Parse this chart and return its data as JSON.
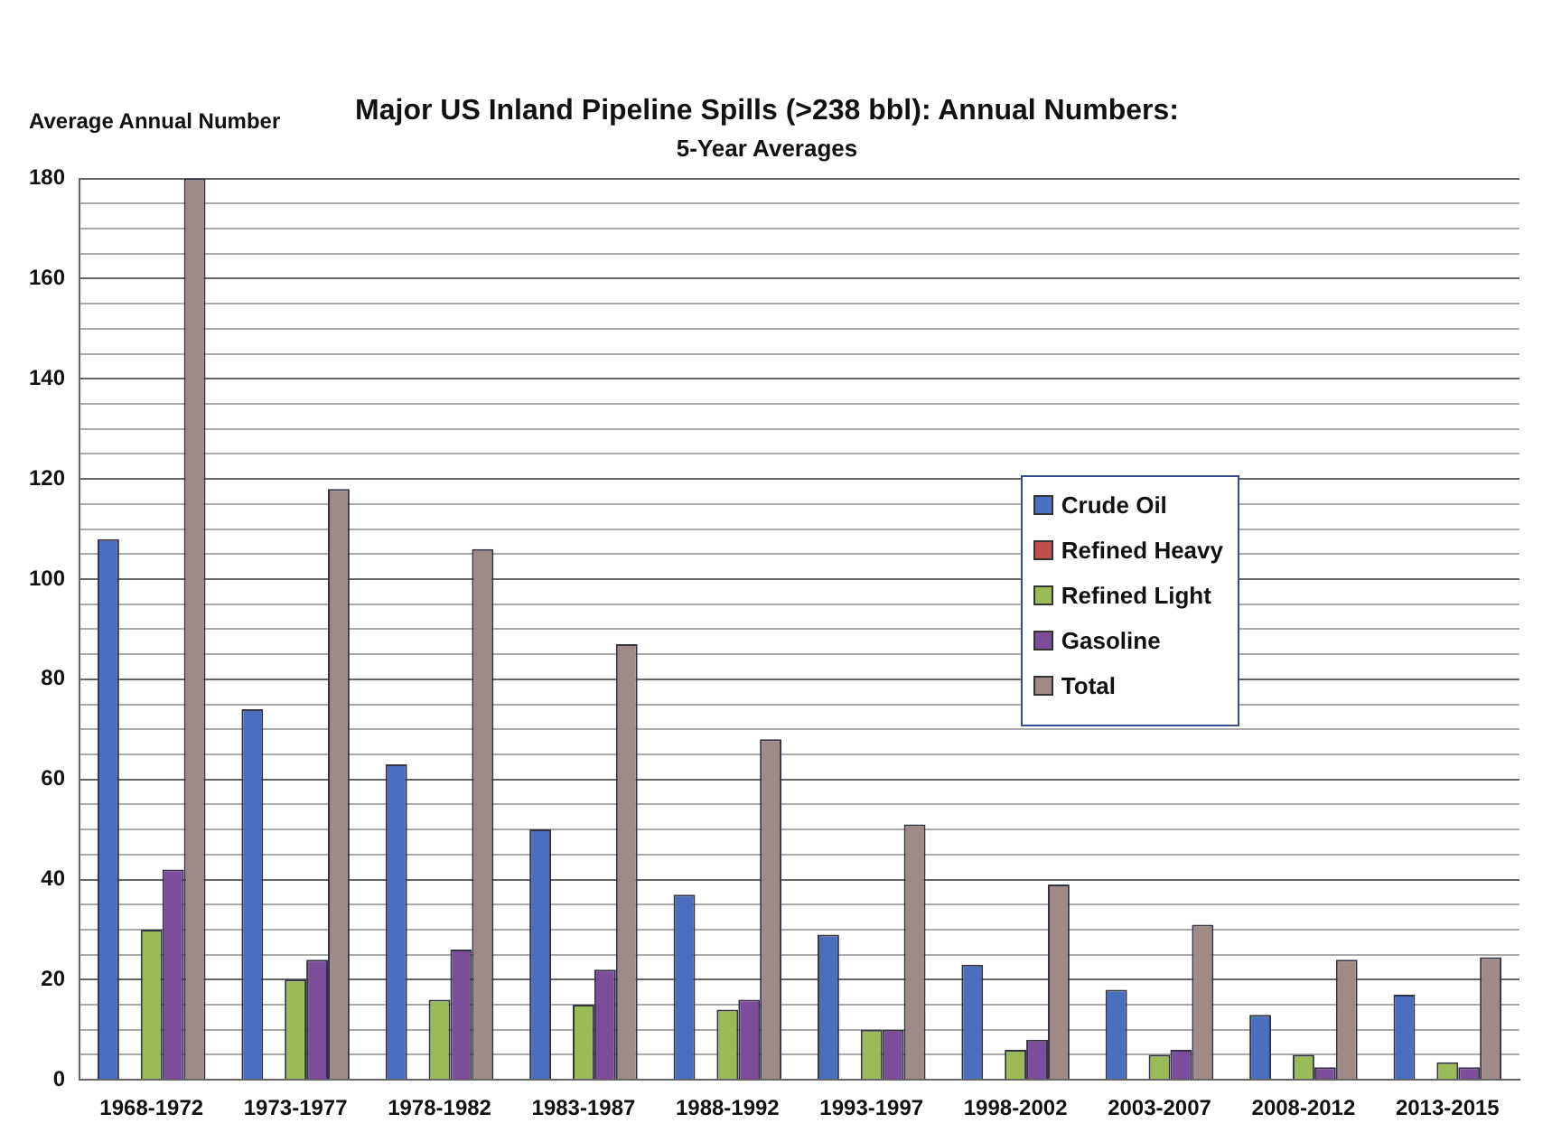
{
  "chart_data": {
    "type": "bar",
    "title": "Major US Inland Pipeline Spills (>238 bbl): Annual Numbers:",
    "subtitle": "5-Year Averages",
    "ylabel": "Average Annual Number",
    "categories": [
      "1968-1972",
      "1973-1977",
      "1978-1982",
      "1983-1987",
      "1988-1992",
      "1993-1997",
      "1998-2002",
      "2003-2007",
      "2008-2012",
      "2013-2015"
    ],
    "series": [
      {
        "name": "Crude Oil",
        "color": "#4a6fbf",
        "values": [
          108,
          74,
          63,
          50,
          37,
          29,
          23,
          18,
          13,
          17
        ]
      },
      {
        "name": "Refined Heavy",
        "color": "#c0504d",
        "values": [
          0,
          0,
          0,
          0,
          null,
          null,
          null,
          null,
          0,
          0
        ]
      },
      {
        "name": "Refined Light",
        "color": "#9bbb59",
        "values": [
          30,
          20,
          16,
          15,
          14,
          10,
          6,
          5,
          5,
          3.5
        ]
      },
      {
        "name": "Gasoline",
        "color": "#7b4d9a",
        "values": [
          42,
          24,
          26,
          22,
          16,
          10,
          8,
          6,
          2.5,
          2.5
        ]
      },
      {
        "name": "Total",
        "color": "#9e8b87",
        "values": [
          180,
          118,
          106,
          87,
          68,
          51,
          39,
          31,
          24,
          24.5
        ]
      }
    ],
    "ylim": [
      0,
      180
    ],
    "yticks": [
      0,
      {
        "value": 5,
        "label": null
      },
      {
        "value": 10,
        "label": null
      },
      {
        "value": 15,
        "label": null
      },
      20,
      {
        "value": 25,
        "label": null
      },
      {
        "value": 30,
        "label": null
      },
      {
        "value": 35,
        "label": null
      },
      40,
      {
        "value": 45,
        "label": null
      },
      {
        "value": 50,
        "label": null
      },
      {
        "value": 55,
        "label": null
      },
      60,
      {
        "value": 65,
        "label": null
      },
      {
        "value": 70,
        "label": null
      },
      {
        "value": 75,
        "label": null
      },
      80,
      {
        "value": 85,
        "label": null
      },
      {
        "value": 90,
        "label": null
      },
      {
        "value": 95,
        "label": null
      },
      100,
      {
        "value": 105,
        "label": null
      },
      {
        "value": 110,
        "label": null
      },
      {
        "value": 115,
        "label": null
      },
      120,
      {
        "value": 125,
        "label": null
      },
      {
        "value": 130,
        "label": null
      },
      {
        "value": 135,
        "label": null
      },
      140,
      {
        "value": 145,
        "label": null
      },
      {
        "value": 150,
        "label": null
      },
      {
        "value": 155,
        "label": null
      },
      160,
      {
        "value": 165,
        "label": null
      },
      {
        "value": 170,
        "label": null
      },
      {
        "value": 175,
        "label": null
      },
      180
    ],
    "grid": "y",
    "legend": "right"
  }
}
